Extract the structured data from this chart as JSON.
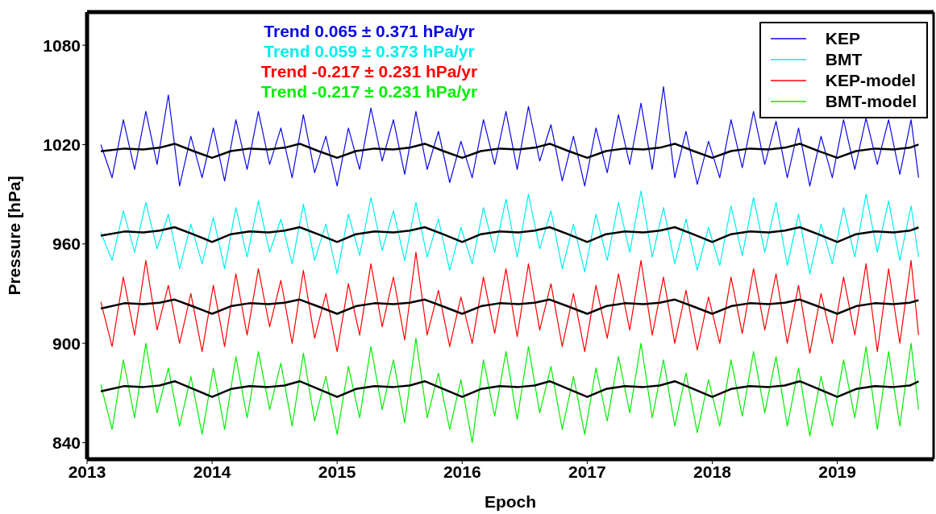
{
  "chart_data": {
    "type": "line",
    "xlabel": "Epoch",
    "ylabel": "Pressure [hPa]",
    "xlim": [
      2013,
      2019.77
    ],
    "xticks": [
      2013,
      2014,
      2015,
      2016,
      2017,
      2018,
      2019
    ],
    "ylim": [
      830,
      1100
    ],
    "yticks": [
      840,
      900,
      960,
      1020,
      1080
    ],
    "legend": "top right",
    "marker": "none",
    "line_style": "solid",
    "annotations": [
      "Trend 0.065 ± 0.371 hPa/yr",
      "Trend 0.059 ± 0.373 hPa/yr",
      "Trend -0.217 ± 0.231 hPa/yr",
      "Trend -0.217 ± 0.231 hPa/yr"
    ],
    "series": [
      {
        "name": "KEP",
        "color": "#0a0ae6",
        "x": [
          2013.11,
          2013.2,
          2013.29,
          2013.38,
          2013.47,
          2013.56,
          2013.65,
          2013.74,
          2013.83,
          2013.92,
          2014.01,
          2014.1,
          2014.19,
          2014.28,
          2014.37,
          2014.46,
          2014.55,
          2014.64,
          2014.73,
          2014.82,
          2014.91,
          2015.0,
          2015.09,
          2015.18,
          2015.27,
          2015.36,
          2015.45,
          2015.54,
          2015.63,
          2015.72,
          2015.81,
          2015.9,
          2015.99,
          2016.08,
          2016.17,
          2016.26,
          2016.35,
          2016.44,
          2016.53,
          2016.62,
          2016.71,
          2016.8,
          2016.89,
          2016.98,
          2017.07,
          2017.16,
          2017.25,
          2017.34,
          2017.43,
          2017.52,
          2017.61,
          2017.7,
          2017.79,
          2017.88,
          2017.97,
          2018.06,
          2018.15,
          2018.24,
          2018.33,
          2018.42,
          2018.51,
          2018.6,
          2018.69,
          2018.78,
          2018.87,
          2018.96,
          2019.05,
          2019.14,
          2019.23,
          2019.32,
          2019.41,
          2019.5,
          2019.59,
          2019.65
        ],
        "values": [
          1020,
          1000,
          1035,
          1005,
          1040,
          1008,
          1050,
          995,
          1025,
          1000,
          1030,
          998,
          1035,
          1005,
          1040,
          1008,
          1030,
          1000,
          1038,
          1003,
          1025,
          995,
          1030,
          1005,
          1042,
          1010,
          1035,
          1002,
          1040,
          1005,
          1028,
          997,
          1022,
          1000,
          1035,
          1008,
          1040,
          1005,
          1043,
          1010,
          1032,
          998,
          1025,
          995,
          1030,
          1003,
          1038,
          1008,
          1045,
          1005,
          1055,
          1000,
          1028,
          996,
          1022,
          1000,
          1035,
          1006,
          1040,
          1008,
          1034,
          1000,
          1030,
          995,
          1025,
          1000,
          1035,
          1005,
          1036,
          1008,
          1035,
          1002,
          1035,
          1000
        ]
      },
      {
        "name": "BMT",
        "color": "#00eeee",
        "x": [
          2013.11,
          2013.2,
          2013.29,
          2013.38,
          2013.47,
          2013.56,
          2013.65,
          2013.74,
          2013.83,
          2013.92,
          2014.01,
          2014.1,
          2014.19,
          2014.28,
          2014.37,
          2014.46,
          2014.55,
          2014.64,
          2014.73,
          2014.82,
          2014.91,
          2015.0,
          2015.09,
          2015.18,
          2015.27,
          2015.36,
          2015.45,
          2015.54,
          2015.63,
          2015.72,
          2015.81,
          2015.9,
          2015.99,
          2016.08,
          2016.17,
          2016.26,
          2016.35,
          2016.44,
          2016.53,
          2016.62,
          2016.71,
          2016.8,
          2016.89,
          2016.98,
          2017.07,
          2017.16,
          2017.25,
          2017.34,
          2017.43,
          2017.52,
          2017.61,
          2017.7,
          2017.79,
          2017.88,
          2017.97,
          2018.06,
          2018.15,
          2018.24,
          2018.33,
          2018.42,
          2018.51,
          2018.6,
          2018.69,
          2018.78,
          2018.87,
          2018.96,
          2019.05,
          2019.14,
          2019.23,
          2019.32,
          2019.41,
          2019.5,
          2019.59,
          2019.65
        ],
        "values": [
          967,
          950,
          980,
          955,
          985,
          957,
          978,
          945,
          972,
          948,
          976,
          945,
          982,
          952,
          986,
          955,
          975,
          948,
          984,
          950,
          972,
          942,
          978,
          953,
          988,
          956,
          980,
          950,
          985,
          952,
          975,
          944,
          970,
          948,
          982,
          955,
          987,
          952,
          990,
          957,
          980,
          945,
          972,
          943,
          978,
          950,
          985,
          955,
          992,
          952,
          982,
          948,
          975,
          944,
          970,
          947,
          983,
          953,
          988,
          955,
          985,
          947,
          978,
          942,
          972,
          948,
          982,
          952,
          990,
          955,
          986,
          950,
          983,
          952
        ]
      },
      {
        "name": "KEP-model",
        "color": "#ff0000",
        "x": [
          2013.11,
          2013.2,
          2013.29,
          2013.38,
          2013.47,
          2013.56,
          2013.65,
          2013.74,
          2013.83,
          2013.92,
          2014.01,
          2014.1,
          2014.19,
          2014.28,
          2014.37,
          2014.46,
          2014.55,
          2014.64,
          2014.73,
          2014.82,
          2014.91,
          2015.0,
          2015.09,
          2015.18,
          2015.27,
          2015.36,
          2015.45,
          2015.54,
          2015.63,
          2015.72,
          2015.81,
          2015.9,
          2015.99,
          2016.08,
          2016.17,
          2016.26,
          2016.35,
          2016.44,
          2016.53,
          2016.62,
          2016.71,
          2016.8,
          2016.89,
          2016.98,
          2017.07,
          2017.16,
          2017.25,
          2017.34,
          2017.43,
          2017.52,
          2017.61,
          2017.7,
          2017.79,
          2017.88,
          2017.97,
          2018.06,
          2018.15,
          2018.24,
          2018.33,
          2018.42,
          2018.51,
          2018.6,
          2018.69,
          2018.78,
          2018.87,
          2018.96,
          2019.05,
          2019.14,
          2019.23,
          2019.32,
          2019.41,
          2019.5,
          2019.59,
          2019.65
        ],
        "values": [
          925,
          898,
          940,
          905,
          950,
          908,
          935,
          900,
          930,
          895,
          935,
          898,
          942,
          905,
          945,
          910,
          938,
          900,
          944,
          903,
          930,
          895,
          936,
          905,
          948,
          910,
          940,
          902,
          955,
          905,
          932,
          898,
          928,
          900,
          940,
          906,
          945,
          904,
          948,
          908,
          936,
          898,
          930,
          895,
          935,
          903,
          942,
          908,
          950,
          905,
          940,
          900,
          932,
          896,
          928,
          900,
          940,
          906,
          945,
          908,
          942,
          900,
          935,
          894,
          930,
          900,
          940,
          905,
          948,
          895,
          945,
          900,
          950,
          905
        ]
      },
      {
        "name": "BMT-model",
        "color": "#00ee00",
        "x": [
          2013.11,
          2013.2,
          2013.29,
          2013.38,
          2013.47,
          2013.56,
          2013.65,
          2013.74,
          2013.83,
          2013.92,
          2014.01,
          2014.1,
          2014.19,
          2014.28,
          2014.37,
          2014.46,
          2014.55,
          2014.64,
          2014.73,
          2014.82,
          2014.91,
          2015.0,
          2015.09,
          2015.18,
          2015.27,
          2015.36,
          2015.45,
          2015.54,
          2015.63,
          2015.72,
          2015.81,
          2015.9,
          2015.99,
          2016.08,
          2016.17,
          2016.26,
          2016.35,
          2016.44,
          2016.53,
          2016.62,
          2016.71,
          2016.8,
          2016.89,
          2016.98,
          2017.07,
          2017.16,
          2017.25,
          2017.34,
          2017.43,
          2017.52,
          2017.61,
          2017.7,
          2017.79,
          2017.88,
          2017.97,
          2018.06,
          2018.15,
          2018.24,
          2018.33,
          2018.42,
          2018.51,
          2018.6,
          2018.69,
          2018.78,
          2018.87,
          2018.96,
          2019.05,
          2019.14,
          2019.23,
          2019.32,
          2019.41,
          2019.5,
          2019.59,
          2019.65
        ],
        "values": [
          875,
          848,
          890,
          855,
          900,
          858,
          885,
          850,
          880,
          845,
          885,
          848,
          892,
          855,
          895,
          860,
          888,
          850,
          894,
          853,
          880,
          845,
          886,
          855,
          898,
          860,
          890,
          852,
          903,
          855,
          882,
          848,
          878,
          840,
          890,
          856,
          895,
          854,
          898,
          858,
          886,
          848,
          880,
          845,
          885,
          853,
          892,
          858,
          900,
          855,
          890,
          850,
          882,
          846,
          878,
          850,
          890,
          856,
          895,
          858,
          892,
          850,
          885,
          844,
          880,
          850,
          890,
          855,
          898,
          848,
          895,
          850,
          900,
          860
        ]
      },
      {
        "color": "#000000",
        "x": [
          2013.11,
          2013.3,
          2013.45,
          2013.58,
          2013.7,
          2013.85,
          2014,
          2014.15,
          2014.3,
          2014.45,
          2014.58,
          2014.7,
          2014.85,
          2015,
          2015.15,
          2015.3,
          2015.45,
          2015.58,
          2015.7,
          2015.85,
          2016,
          2016.15,
          2016.3,
          2016.45,
          2016.58,
          2016.7,
          2016.85,
          2017,
          2017.15,
          2017.3,
          2017.45,
          2017.58,
          2017.7,
          2017.85,
          2018,
          2018.15,
          2018.3,
          2018.45,
          2018.58,
          2018.7,
          2018.85,
          2019,
          2019.15,
          2019.3,
          2019.45,
          2019.58,
          2019.65
        ],
        "values": [
          1016,
          1017.6,
          1017,
          1018.1,
          1020.5,
          1016.1,
          1012,
          1016.1,
          1017.6,
          1017,
          1018.1,
          1020.5,
          1016.1,
          1012,
          1016.1,
          1017.6,
          1017,
          1018.1,
          1020.5,
          1016.1,
          1012,
          1016.1,
          1017.6,
          1017,
          1018.1,
          1020.5,
          1016.1,
          1012,
          1016.1,
          1017.6,
          1017,
          1018.1,
          1020.5,
          1016.1,
          1012,
          1016.1,
          1017.6,
          1017,
          1018.1,
          1020.5,
          1016.1,
          1012,
          1016.1,
          1017.6,
          1017,
          1018.1,
          1020
        ]
      },
      {
        "color": "#000000",
        "x": [
          2013.11,
          2013.3,
          2013.45,
          2013.58,
          2013.7,
          2013.85,
          2014,
          2014.15,
          2014.3,
          2014.45,
          2014.58,
          2014.7,
          2014.85,
          2015,
          2015.15,
          2015.3,
          2015.45,
          2015.58,
          2015.7,
          2015.85,
          2016,
          2016.15,
          2016.3,
          2016.45,
          2016.58,
          2016.7,
          2016.85,
          2017,
          2017.15,
          2017.3,
          2017.45,
          2017.58,
          2017.7,
          2017.85,
          2018,
          2018.15,
          2018.3,
          2018.45,
          2018.58,
          2018.7,
          2018.85,
          2019,
          2019.15,
          2019.3,
          2019.45,
          2019.58,
          2019.65
        ],
        "values": [
          965,
          967.5,
          967,
          968,
          970.1,
          965.8,
          961.2,
          965.9,
          967.5,
          967,
          968,
          970.1,
          965.8,
          961.2,
          965.9,
          967.5,
          967,
          968,
          970.1,
          965.8,
          961.2,
          965.9,
          967.5,
          967,
          968,
          970.1,
          965.8,
          961.2,
          965.9,
          967.5,
          967,
          968,
          970.1,
          965.8,
          961.2,
          965.9,
          967.5,
          967,
          968,
          970.1,
          965.8,
          961.2,
          965.9,
          967.5,
          967,
          968,
          970
        ]
      },
      {
        "color": "#000000",
        "x": [
          2013.11,
          2013.3,
          2013.45,
          2013.58,
          2013.7,
          2013.85,
          2014,
          2014.15,
          2014.3,
          2014.45,
          2014.58,
          2014.7,
          2014.85,
          2015,
          2015.15,
          2015.3,
          2015.45,
          2015.58,
          2015.7,
          2015.85,
          2016,
          2016.15,
          2016.3,
          2016.45,
          2016.58,
          2016.7,
          2016.85,
          2017,
          2017.15,
          2017.3,
          2017.45,
          2017.58,
          2017.7,
          2017.85,
          2018,
          2018.15,
          2018.3,
          2018.45,
          2018.58,
          2018.7,
          2018.85,
          2019,
          2019.15,
          2019.3,
          2019.45,
          2019.58,
          2019.65
        ],
        "values": [
          921,
          924.2,
          923.6,
          924.5,
          926.4,
          922.2,
          917.8,
          922.4,
          924.2,
          923.6,
          924.5,
          926.4,
          922.2,
          917.8,
          922.4,
          924.2,
          923.6,
          924.5,
          926.4,
          922.2,
          917.8,
          922.4,
          924.2,
          923.6,
          924.5,
          926.4,
          922.2,
          917.8,
          922.4,
          924.2,
          923.6,
          924.5,
          926.4,
          922.2,
          917.8,
          922.4,
          924.2,
          923.6,
          924.5,
          926.4,
          922.2,
          917.8,
          922.4,
          924.2,
          923.6,
          924.5,
          926
        ]
      },
      {
        "color": "#000000",
        "x": [
          2013.11,
          2013.3,
          2013.45,
          2013.58,
          2013.7,
          2013.85,
          2014,
          2014.15,
          2014.3,
          2014.45,
          2014.58,
          2014.7,
          2014.85,
          2015,
          2015.15,
          2015.3,
          2015.45,
          2015.58,
          2015.7,
          2015.85,
          2016,
          2016.15,
          2016.3,
          2016.45,
          2016.58,
          2016.7,
          2016.85,
          2017,
          2017.15,
          2017.3,
          2017.45,
          2017.58,
          2017.7,
          2017.85,
          2018,
          2018.15,
          2018.3,
          2018.45,
          2018.58,
          2018.7,
          2018.85,
          2019,
          2019.15,
          2019.3,
          2019.45,
          2019.58,
          2019.65
        ],
        "values": [
          871,
          874.2,
          873.6,
          874.5,
          877.1,
          872.4,
          867.6,
          872.4,
          874.2,
          873.6,
          874.5,
          877.1,
          872.4,
          867.6,
          872.4,
          874.2,
          873.6,
          874.5,
          877.1,
          872.4,
          867.6,
          872.4,
          874.2,
          873.6,
          874.5,
          877.1,
          872.4,
          867.6,
          872.4,
          874.2,
          873.6,
          874.5,
          877.1,
          872.4,
          867.6,
          872.4,
          874.2,
          873.6,
          874.5,
          877.1,
          872.4,
          867.6,
          872.4,
          874.2,
          873.6,
          874.5,
          877
        ]
      }
    ]
  }
}
